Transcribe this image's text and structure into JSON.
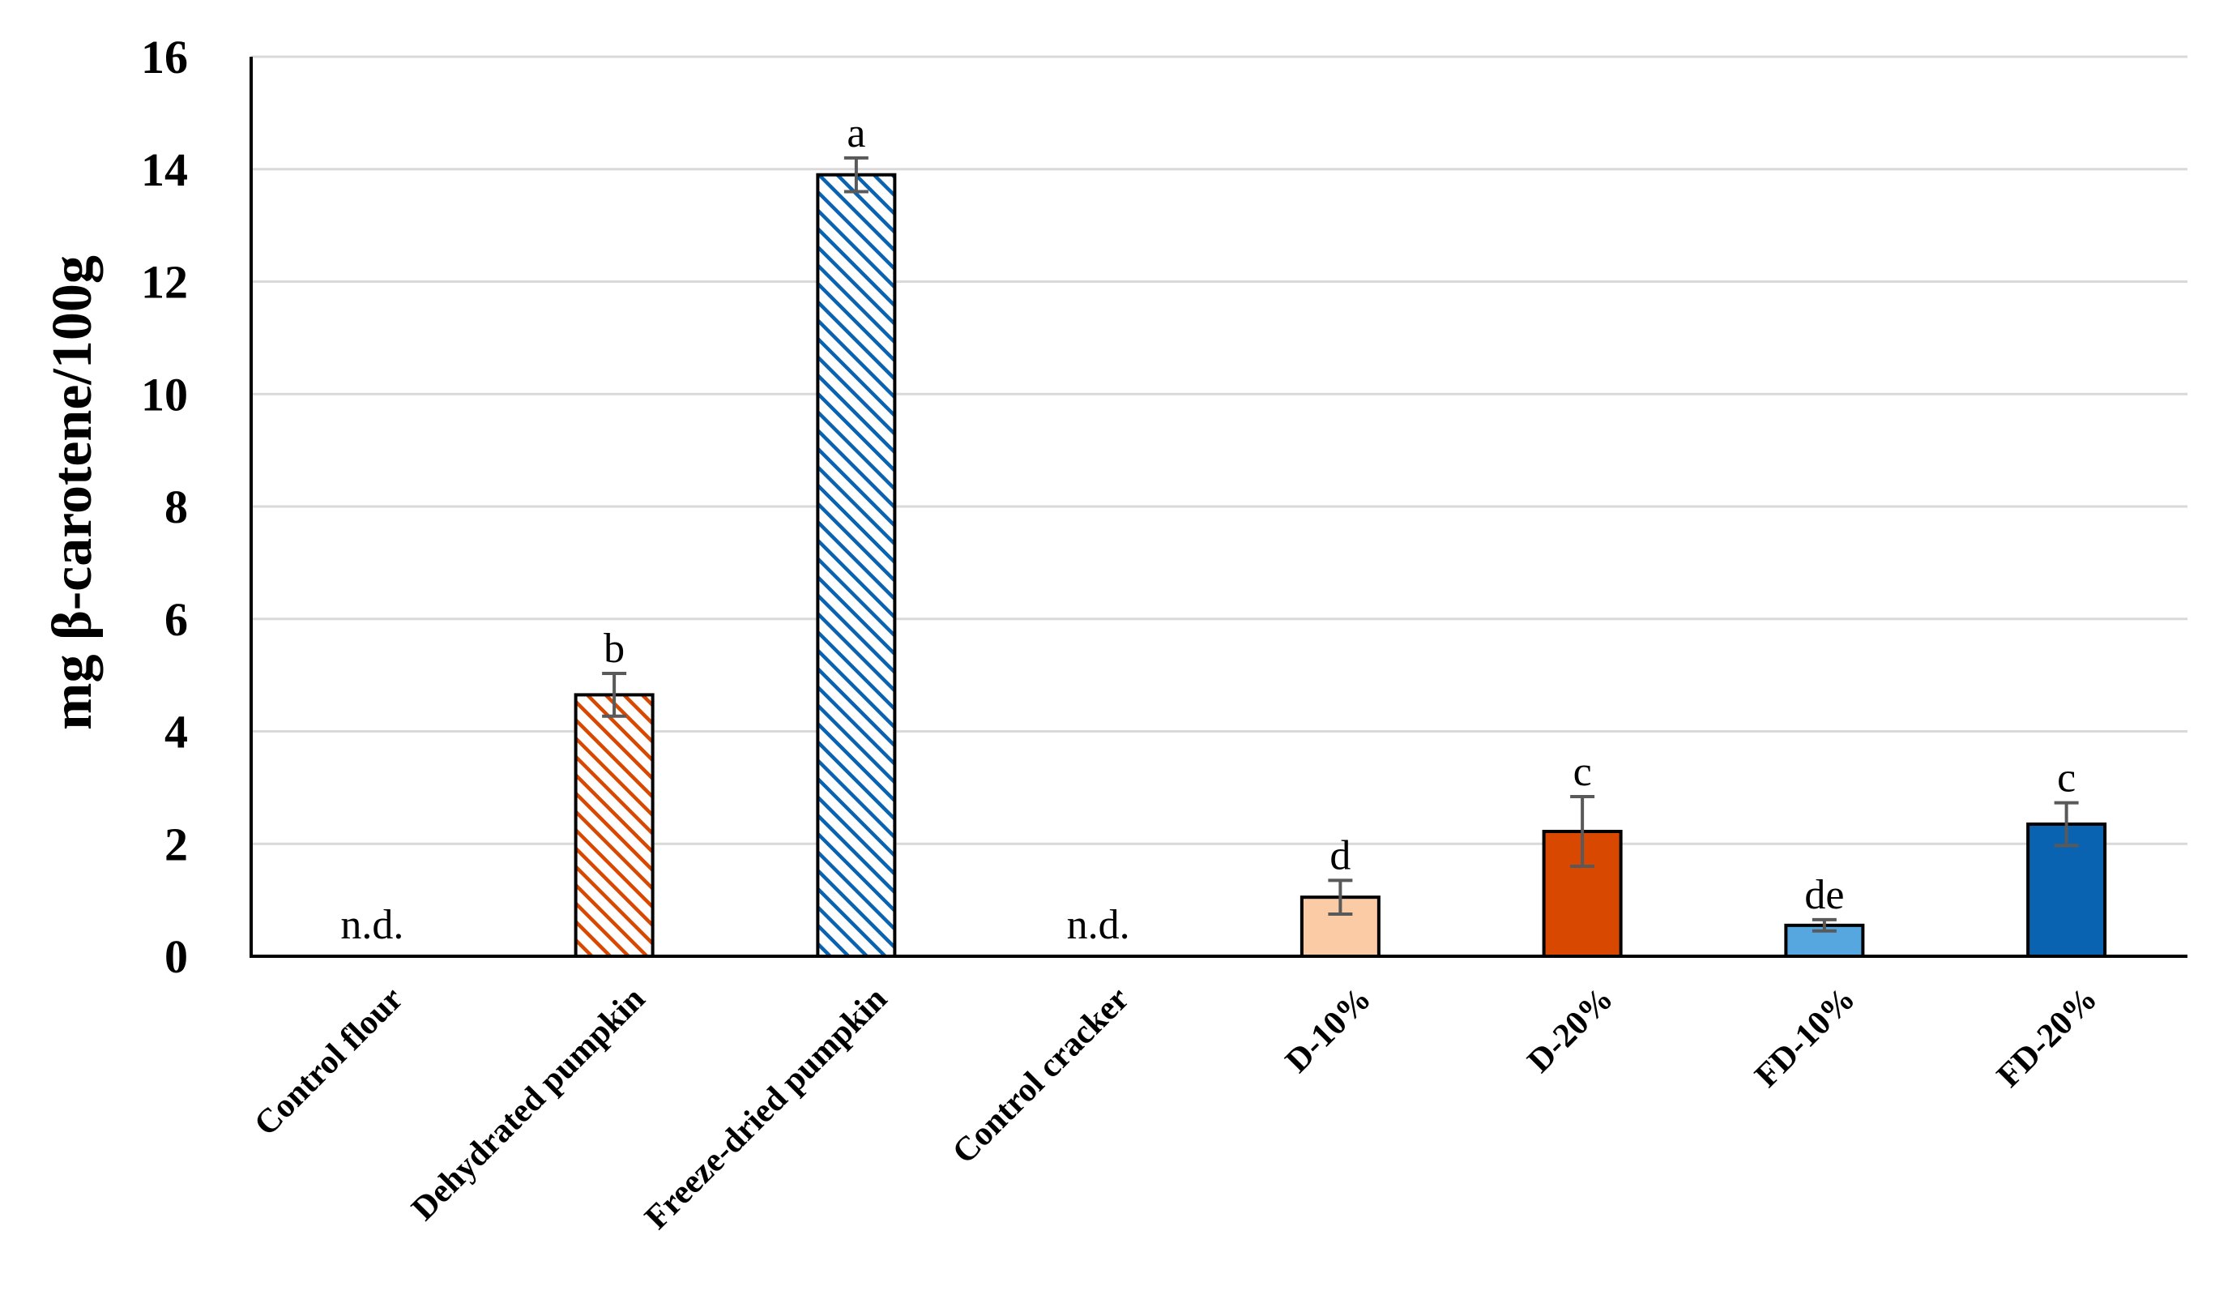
{
  "chart_data": {
    "type": "bar",
    "ylabel": "mg β-carotene/100g",
    "ylim": [
      0,
      16
    ],
    "yticks": [
      0,
      2,
      4,
      6,
      8,
      10,
      12,
      14,
      16
    ],
    "grid": "horizontal",
    "categories": [
      "Control flour",
      "Dehydrated pumpkin",
      "Freeze-dried pumpkin",
      "Control cracker",
      "D-10%",
      "D-20%",
      "FD-10%",
      "FD-20%"
    ],
    "values": [
      0,
      4.65,
      13.9,
      0,
      1.05,
      2.22,
      0.55,
      2.35
    ],
    "errors": [
      0,
      0.38,
      0.3,
      0,
      0.3,
      0.62,
      0.1,
      0.38
    ],
    "labels": [
      "n.d.",
      "b",
      "a",
      "n.d.",
      "d",
      "c",
      "de",
      "c"
    ],
    "colors": [
      "#ffffff",
      "#d94801",
      "#0a63b1",
      "#ffffff",
      "#fbcba6",
      "#d94801",
      "#56a7e0",
      "#0a63b1"
    ],
    "patterns": [
      "none",
      "hatch",
      "hatch",
      "none",
      "solid",
      "solid",
      "solid",
      "solid"
    ]
  }
}
